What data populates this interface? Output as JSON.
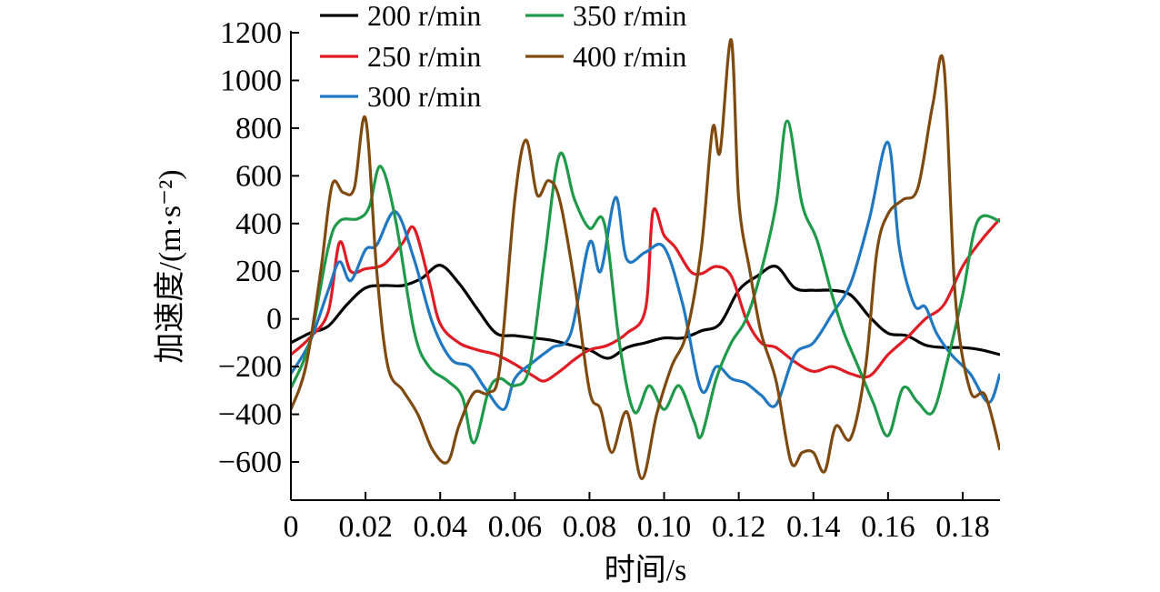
{
  "chart_data": {
    "type": "line",
    "xlabel": "时间/s",
    "ylabel": "加速度/(m·s⁻²)",
    "xlim": [
      0,
      0.19
    ],
    "ylim": [
      -760,
      1200
    ],
    "x_ticks": [
      0,
      0.02,
      0.04,
      0.06,
      0.08,
      0.1,
      0.12,
      0.14,
      0.16,
      0.18
    ],
    "x_tick_labels": [
      "0",
      "0.02",
      "0.04",
      "0.06",
      "0.08",
      "0.10",
      "0.12",
      "0.14",
      "0.16",
      "0.18"
    ],
    "y_ticks": [
      1200,
      1000,
      800,
      600,
      400,
      200,
      0,
      -200,
      -400,
      -600
    ],
    "y_tick_labels": [
      "1200",
      "1000",
      "800",
      "600",
      "400",
      "200",
      "0",
      "−200",
      "−400",
      "−600"
    ],
    "grid": false,
    "legend_position": "top",
    "series": [
      {
        "name": "200 r/min",
        "color": "#000000",
        "x": [
          0,
          0.005,
          0.01,
          0.015,
          0.02,
          0.025,
          0.03,
          0.035,
          0.04,
          0.045,
          0.05,
          0.055,
          0.06,
          0.065,
          0.07,
          0.075,
          0.08,
          0.085,
          0.09,
          0.095,
          0.1,
          0.105,
          0.11,
          0.115,
          0.12,
          0.125,
          0.13,
          0.135,
          0.14,
          0.145,
          0.15,
          0.155,
          0.16,
          0.165,
          0.17,
          0.175,
          0.18,
          0.185,
          0.19
        ],
        "y": [
          -100,
          -60,
          -30,
          60,
          130,
          140,
          140,
          170,
          225,
          150,
          40,
          -60,
          -70,
          -80,
          -90,
          -110,
          -130,
          -165,
          -120,
          -100,
          -80,
          -80,
          -50,
          -20,
          120,
          180,
          220,
          130,
          120,
          120,
          100,
          10,
          -60,
          -70,
          -110,
          -120,
          -120,
          -130,
          -150
        ]
      },
      {
        "name": "250 r/min",
        "color": "#e01b24",
        "x": [
          0,
          0.005,
          0.01,
          0.013,
          0.016,
          0.02,
          0.025,
          0.03,
          0.033,
          0.037,
          0.04,
          0.045,
          0.05,
          0.055,
          0.06,
          0.065,
          0.068,
          0.072,
          0.076,
          0.08,
          0.085,
          0.09,
          0.095,
          0.097,
          0.1,
          0.103,
          0.107,
          0.11,
          0.114,
          0.118,
          0.122,
          0.126,
          0.13,
          0.135,
          0.14,
          0.145,
          0.15,
          0.155,
          0.16,
          0.165,
          0.17,
          0.175,
          0.18,
          0.185,
          0.19
        ],
        "y": [
          -150,
          -80,
          30,
          320,
          200,
          210,
          230,
          320,
          380,
          160,
          -20,
          -100,
          -130,
          -150,
          -190,
          -240,
          -260,
          -220,
          -170,
          -130,
          -110,
          -60,
          40,
          450,
          350,
          300,
          200,
          190,
          220,
          180,
          0,
          -100,
          -120,
          -180,
          -220,
          -200,
          -230,
          -240,
          -150,
          -80,
          0,
          60,
          220,
          330,
          420
        ]
      },
      {
        "name": "300 r/min",
        "color": "#1f78c1",
        "x": [
          0,
          0.005,
          0.01,
          0.013,
          0.016,
          0.02,
          0.023,
          0.028,
          0.033,
          0.038,
          0.043,
          0.048,
          0.052,
          0.057,
          0.06,
          0.065,
          0.07,
          0.075,
          0.08,
          0.083,
          0.087,
          0.09,
          0.095,
          0.1,
          0.105,
          0.11,
          0.114,
          0.118,
          0.122,
          0.126,
          0.13,
          0.135,
          0.14,
          0.145,
          0.15,
          0.155,
          0.16,
          0.163,
          0.167,
          0.17,
          0.173,
          0.177,
          0.182,
          0.187,
          0.19
        ],
        "y": [
          -230,
          -100,
          120,
          240,
          160,
          290,
          310,
          450,
          250,
          -20,
          -170,
          -200,
          -290,
          -380,
          -250,
          -180,
          -120,
          -60,
          320,
          200,
          510,
          250,
          280,
          300,
          60,
          -300,
          -200,
          -250,
          -270,
          -320,
          -360,
          -150,
          -100,
          20,
          150,
          420,
          740,
          300,
          60,
          50,
          -60,
          -150,
          -230,
          -350,
          -230
        ]
      },
      {
        "name": "350 r/min",
        "color": "#1f9a4a",
        "x": [
          0,
          0.005,
          0.01,
          0.013,
          0.018,
          0.021,
          0.024,
          0.028,
          0.033,
          0.037,
          0.042,
          0.046,
          0.049,
          0.053,
          0.056,
          0.06,
          0.064,
          0.068,
          0.072,
          0.076,
          0.08,
          0.084,
          0.088,
          0.092,
          0.096,
          0.1,
          0.104,
          0.108,
          0.11,
          0.114,
          0.118,
          0.122,
          0.126,
          0.13,
          0.133,
          0.137,
          0.141,
          0.145,
          0.148,
          0.152,
          0.156,
          0.16,
          0.164,
          0.168,
          0.172,
          0.176,
          0.18,
          0.184,
          0.19
        ],
        "y": [
          -290,
          -100,
          300,
          410,
          420,
          470,
          640,
          420,
          -50,
          -200,
          -260,
          -330,
          -520,
          -300,
          -250,
          -280,
          -200,
          260,
          690,
          500,
          380,
          400,
          -100,
          -390,
          -280,
          -380,
          -280,
          -430,
          -490,
          -250,
          -100,
          0,
          200,
          480,
          830,
          480,
          330,
          100,
          -50,
          -200,
          -350,
          -490,
          -290,
          -350,
          -390,
          -170,
          100,
          410,
          410
        ]
      },
      {
        "name": "400 r/min",
        "color": "#7f4a0f",
        "x": [
          0,
          0.004,
          0.008,
          0.011,
          0.014,
          0.017,
          0.02,
          0.023,
          0.026,
          0.03,
          0.034,
          0.038,
          0.042,
          0.045,
          0.049,
          0.053,
          0.056,
          0.06,
          0.063,
          0.066,
          0.069,
          0.072,
          0.076,
          0.08,
          0.083,
          0.086,
          0.09,
          0.094,
          0.098,
          0.102,
          0.106,
          0.11,
          0.113,
          0.115,
          0.118,
          0.12,
          0.123,
          0.126,
          0.13,
          0.134,
          0.137,
          0.14,
          0.143,
          0.146,
          0.15,
          0.154,
          0.157,
          0.16,
          0.164,
          0.168,
          0.172,
          0.175,
          0.178,
          0.182,
          0.186,
          0.19
        ],
        "y": [
          -380,
          -200,
          200,
          560,
          530,
          550,
          840,
          200,
          -200,
          -300,
          -400,
          -550,
          -600,
          -450,
          -310,
          -310,
          -200,
          500,
          750,
          520,
          580,
          500,
          150,
          -300,
          -380,
          -560,
          -390,
          -670,
          -400,
          -200,
          -60,
          300,
          800,
          700,
          1170,
          500,
          200,
          -60,
          -260,
          -600,
          -560,
          -560,
          -640,
          -450,
          -500,
          -200,
          280,
          440,
          500,
          550,
          900,
          1060,
          100,
          -300,
          -320,
          -550
        ]
      }
    ]
  }
}
